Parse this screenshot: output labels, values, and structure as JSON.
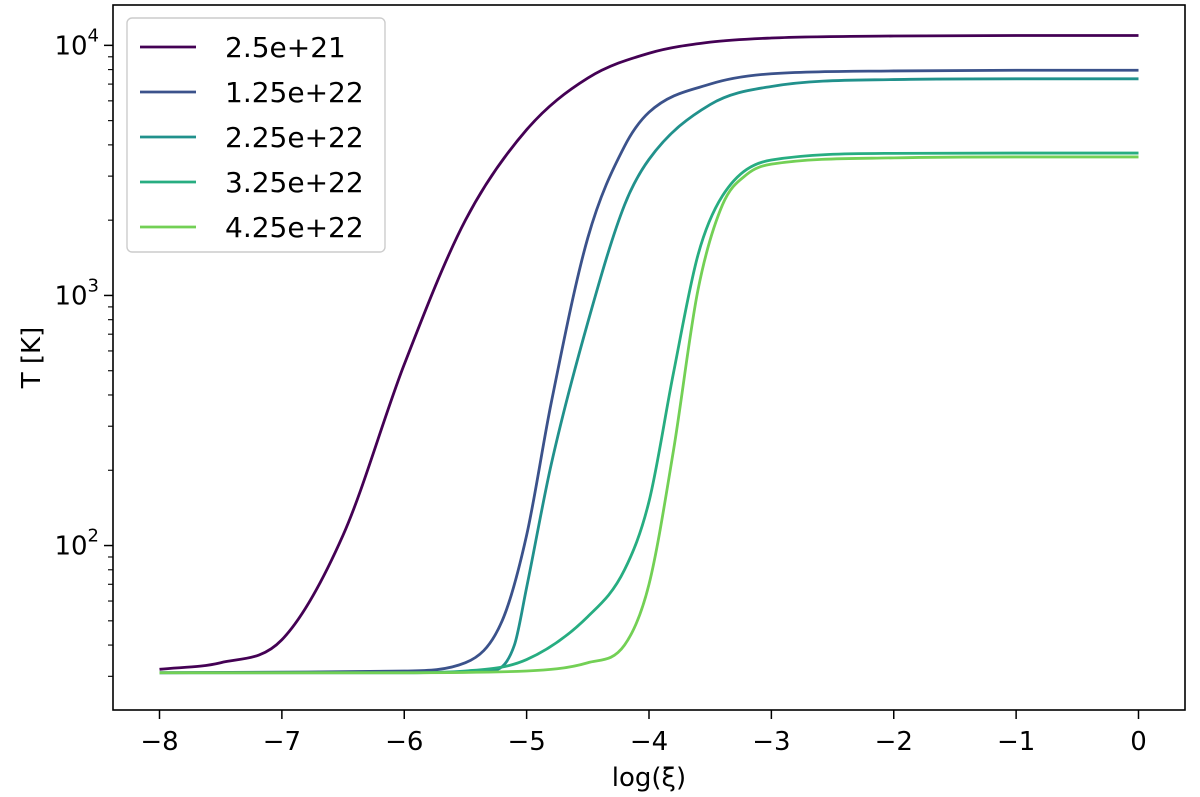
{
  "chart_data": {
    "type": "line",
    "xlabel": "log(ξ)",
    "ylabel": "T [K]",
    "xlim": [
      -8.38,
      0.38
    ],
    "ylim": [
      22,
      14500
    ],
    "yscale": "log",
    "xticks": [
      -8,
      -7,
      -6,
      -5,
      -4,
      -3,
      -2,
      -1,
      0
    ],
    "xtick_labels": [
      "−8",
      "−7",
      "−6",
      "−5",
      "−4",
      "−3",
      "−2",
      "−1",
      "0"
    ],
    "yticks": [
      {
        "value": 100,
        "base": "10",
        "exp": "2"
      },
      {
        "value": 1000,
        "base": "10",
        "exp": "3"
      },
      {
        "value": 10000,
        "base": "10",
        "exp": "4"
      }
    ],
    "grid": false,
    "legend": "top-left",
    "series": [
      {
        "name": "2.5e+21",
        "color": "#440154",
        "x": [
          -8,
          -7.5,
          -7,
          -6.5,
          -6,
          -5.5,
          -5,
          -4.5,
          -4,
          -3.5,
          -3,
          -2,
          -1,
          0
        ],
        "y": [
          32,
          34,
          42,
          110,
          530,
          2000,
          4600,
          7400,
          9300,
          10300,
          10700,
          10900,
          10950,
          10950
        ]
      },
      {
        "name": "1.25e+22",
        "color": "#3b528b",
        "x": [
          -8,
          -6,
          -5.5,
          -5.2,
          -5,
          -4.8,
          -4.5,
          -4.2,
          -4,
          -3.5,
          -3,
          -2,
          -1,
          0
        ],
        "y": [
          31,
          31.5,
          34,
          50,
          110,
          370,
          1700,
          3950,
          5400,
          7000,
          7700,
          7900,
          7950,
          7950
        ]
      },
      {
        "name": "2.25e+22",
        "color": "#21918c",
        "x": [
          -8,
          -6,
          -5.3,
          -5.1,
          -5,
          -4.8,
          -4.5,
          -4.2,
          -4,
          -3.5,
          -3,
          -2,
          -1,
          0
        ],
        "y": [
          31,
          31,
          31.5,
          40,
          68,
          210,
          780,
          2300,
          3500,
          5800,
          6850,
          7300,
          7350,
          7350
        ]
      },
      {
        "name": "3.25e+22",
        "color": "#27ad81",
        "x": [
          -8,
          -6,
          -5.5,
          -5,
          -4.5,
          -4.2,
          -4,
          -3.8,
          -3.6,
          -3.4,
          -3,
          -2,
          -1,
          0
        ],
        "y": [
          31,
          31,
          31.5,
          35,
          52,
          80,
          150,
          490,
          1450,
          2500,
          3480,
          3700,
          3710,
          3710
        ]
      },
      {
        "name": "4.25e+22",
        "color": "#73d055",
        "x": [
          -8,
          -6,
          -5,
          -4.5,
          -4.2,
          -4,
          -3.8,
          -3.6,
          -3.4,
          -3.2,
          -3,
          -2,
          -1,
          0
        ],
        "y": [
          31,
          31,
          31.5,
          34,
          40,
          70,
          240,
          1050,
          2300,
          3050,
          3350,
          3550,
          3580,
          3580
        ]
      }
    ]
  }
}
